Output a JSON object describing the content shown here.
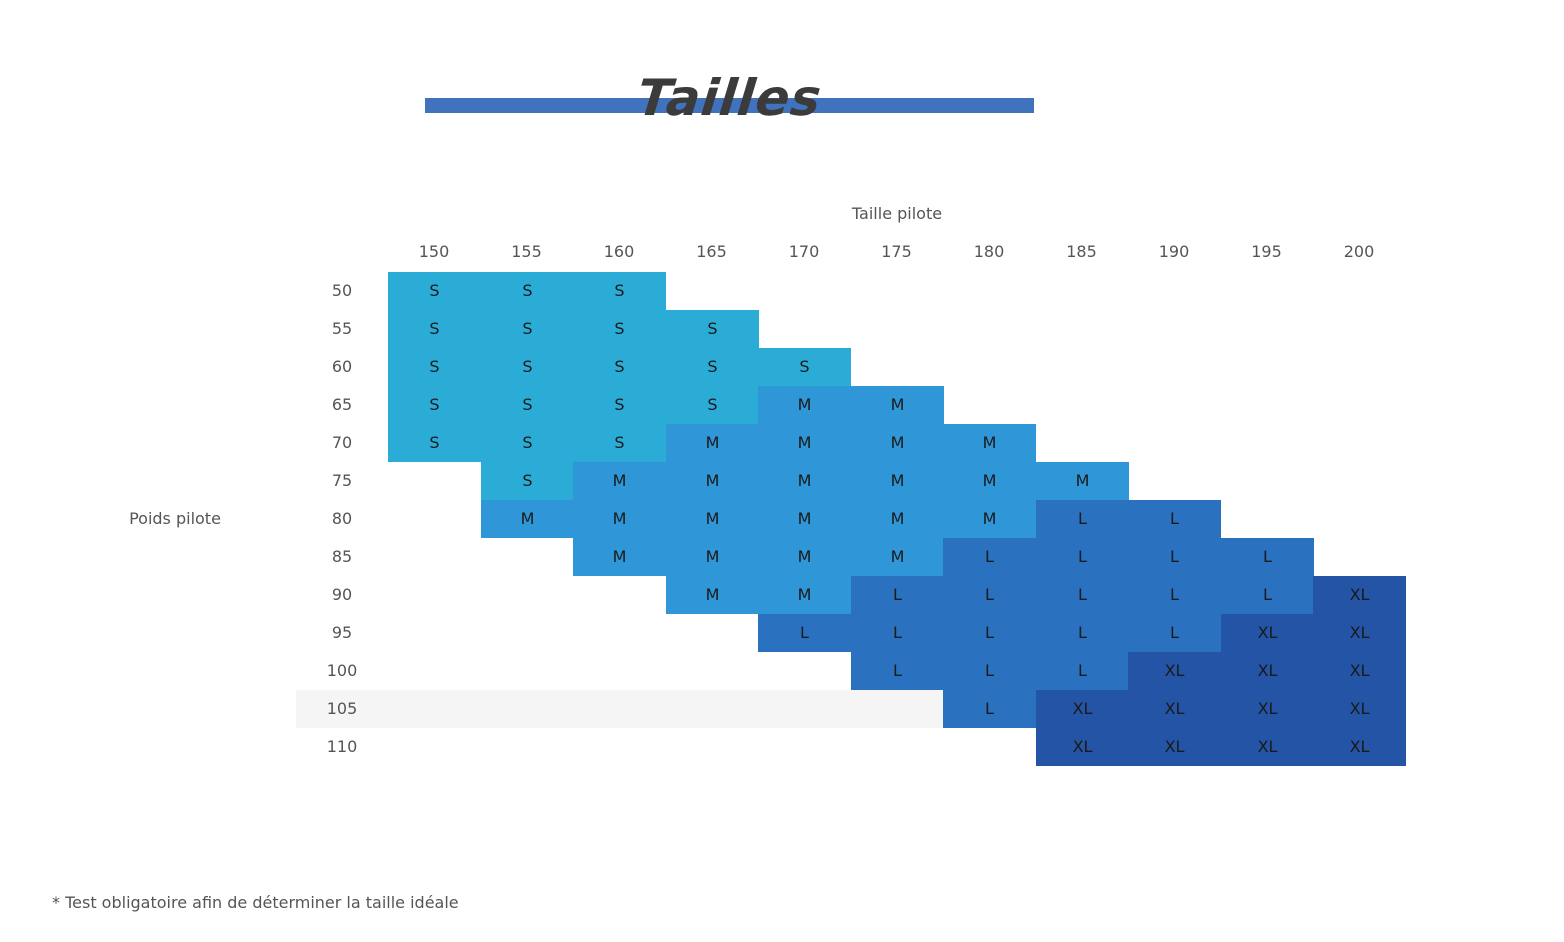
{
  "title": "Tailles",
  "x_axis_title": "Taille pilote",
  "y_axis_title": "Poids pilote",
  "footnote": "* Test obligatoire afin de déterminer la taille idéale",
  "colors": {
    "accent_bar": "#4072bd",
    "S": "#2aacd6",
    "M": "#2f97d8",
    "L": "#2a72c0",
    "XL": "#2354a5",
    "highlight_row": "#f5f5f5"
  },
  "columns": [
    "150",
    "155",
    "160",
    "165",
    "170",
    "175",
    "180",
    "185",
    "190",
    "195",
    "200"
  ],
  "highlighted_row": "105",
  "rows": [
    {
      "label": "50",
      "cells": [
        "S",
        "S",
        "S",
        "",
        "",
        "",
        "",
        "",
        "",
        "",
        ""
      ]
    },
    {
      "label": "55",
      "cells": [
        "S",
        "S",
        "S",
        "S",
        "",
        "",
        "",
        "",
        "",
        "",
        ""
      ]
    },
    {
      "label": "60",
      "cells": [
        "S",
        "S",
        "S",
        "S",
        "S",
        "",
        "",
        "",
        "",
        "",
        ""
      ]
    },
    {
      "label": "65",
      "cells": [
        "S",
        "S",
        "S",
        "S",
        "M",
        "M",
        "",
        "",
        "",
        "",
        ""
      ]
    },
    {
      "label": "70",
      "cells": [
        "S",
        "S",
        "S",
        "M",
        "M",
        "M",
        "M",
        "",
        "",
        "",
        ""
      ]
    },
    {
      "label": "75",
      "cells": [
        "",
        "S",
        "M",
        "M",
        "M",
        "M",
        "M",
        "M",
        "",
        "",
        ""
      ]
    },
    {
      "label": "80",
      "cells": [
        "",
        "M",
        "M",
        "M",
        "M",
        "M",
        "M",
        "L",
        "L",
        "",
        ""
      ]
    },
    {
      "label": "85",
      "cells": [
        "",
        "",
        "M",
        "M",
        "M",
        "M",
        "L",
        "L",
        "L",
        "L",
        ""
      ]
    },
    {
      "label": "90",
      "cells": [
        "",
        "",
        "",
        "M",
        "M",
        "L",
        "L",
        "L",
        "L",
        "L",
        "XL"
      ]
    },
    {
      "label": "95",
      "cells": [
        "",
        "",
        "",
        "",
        "L",
        "L",
        "L",
        "L",
        "L",
        "XL",
        "XL"
      ]
    },
    {
      "label": "100",
      "cells": [
        "",
        "",
        "",
        "",
        "",
        "L",
        "L",
        "L",
        "XL",
        "XL",
        "XL"
      ]
    },
    {
      "label": "105",
      "cells": [
        "",
        "",
        "",
        "",
        "",
        "",
        "L",
        "XL",
        "XL",
        "XL",
        "XL"
      ]
    },
    {
      "label": "110",
      "cells": [
        "",
        "",
        "",
        "",
        "",
        "",
        "",
        "XL",
        "XL",
        "XL",
        "XL"
      ]
    }
  ]
}
